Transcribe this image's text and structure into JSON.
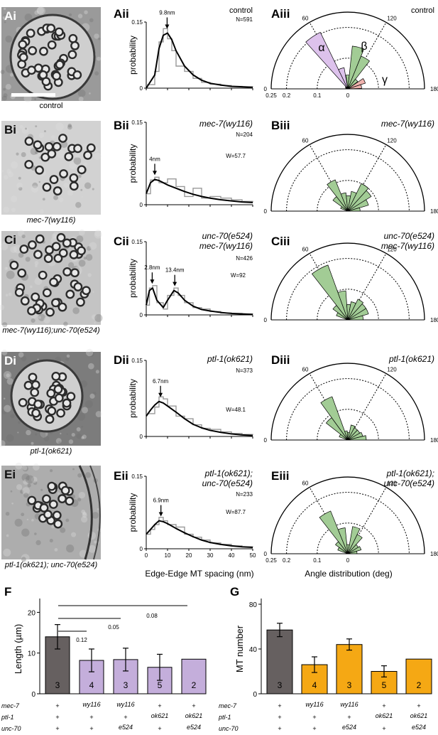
{
  "micrographs": [
    {
      "id": "A",
      "label": "Ai",
      "caption": "control"
    },
    {
      "id": "B",
      "label": "Bi",
      "caption": "mec-7(wy116)"
    },
    {
      "id": "C",
      "label": "Ci",
      "caption": "mec-7(wy116);unc-70(e524)"
    },
    {
      "id": "D",
      "label": "Di",
      "caption": "ptl-1(ok621)"
    },
    {
      "id": "E",
      "label": "Ei",
      "caption": "ptl-1(ok621); unc-70(e524)"
    }
  ],
  "spacing_panels": [
    {
      "label": "Aii",
      "genotype": [
        "control"
      ],
      "N": "N=591",
      "W": "",
      "peaks": [
        "9.8nm"
      ]
    },
    {
      "label": "Bii",
      "genotype": [
        "mec-7(wy116)"
      ],
      "N": "N=204",
      "W": "W=57.7",
      "peaks": [
        "4nm"
      ]
    },
    {
      "label": "Cii",
      "genotype": [
        "unc-70(e524)",
        "mec-7(wy116)"
      ],
      "N": "N=426",
      "W": "W=92",
      "peaks": [
        "2.8nm",
        "13.4nm"
      ]
    },
    {
      "label": "Dii",
      "genotype": [
        "ptl-1(ok621)"
      ],
      "N": "N=373",
      "W": "W=48.1",
      "peaks": [
        "6.7nm"
      ]
    },
    {
      "label": "Eii",
      "genotype": [
        "ptl-1(ok621);",
        "unc-70(e524)"
      ],
      "N": "N=233",
      "W": "W=87.7",
      "peaks": [
        "6.9nm"
      ]
    }
  ],
  "angle_panels": [
    {
      "label": "Aiii",
      "genotype": [
        "control"
      ],
      "greek": [
        "α",
        "β",
        "γ"
      ]
    },
    {
      "label": "Biii",
      "genotype": [
        "mec-7(wy116)"
      ]
    },
    {
      "label": "Ciii",
      "genotype": [
        "unc-70(e524)",
        "mec-7(wy116)"
      ]
    },
    {
      "label": "Diii",
      "genotype": [
        "ptl-1(ok621)"
      ]
    },
    {
      "label": "Eiii",
      "genotype": [
        "ptl-1(ok621);",
        "unc-70(e524)"
      ]
    }
  ],
  "axis_text": {
    "probability": "probability",
    "ytick_top": "0.15",
    "ytick_zero": "0",
    "spacing_xlabel": "Edge-Edge MT spacing (nm)",
    "spacing_xticks": [
      "0",
      "10",
      "20",
      "30",
      "40",
      "50"
    ],
    "angle_xlabel": "Angle distribution (deg)",
    "angle_marks": [
      "0",
      "60",
      "120",
      "180"
    ],
    "radius_ticks": [
      "0.25",
      "0.2",
      "0.1",
      "0"
    ]
  },
  "bar_panels": {
    "F": {
      "label": "F",
      "ylabel": "Length (µm)",
      "yticks": [
        "0",
        "10",
        "20"
      ],
      "pvalues": [
        "0.12",
        "0.05",
        "0.08"
      ]
    },
    "G": {
      "label": "G",
      "ylabel": "MT number",
      "yticks": [
        "0",
        "40",
        "80"
      ]
    }
  },
  "genotype_table": {
    "rows": [
      "mec-7",
      "ptl-1",
      "unc-70"
    ],
    "cols": [
      [
        "+",
        "+",
        "+"
      ],
      [
        "wy116",
        "+",
        "+"
      ],
      [
        "wy116",
        "+",
        "e524"
      ],
      [
        "+",
        "ok621",
        "+"
      ],
      [
        "+",
        "ok621",
        "e524"
      ]
    ]
  },
  "colors": {
    "control": "#666060",
    "mec7": "#c4aedb",
    "orange": "#f5a814",
    "green": "#a2cc95",
    "alpha": "#ddc2ec",
    "gamma": "#f0b3ae"
  },
  "chart_data": [
    {
      "type": "line",
      "title": "Aii",
      "xlabel": "Edge-Edge MT spacing (nm)",
      "ylabel": "probability",
      "xlim": [
        0,
        50
      ],
      "ylim": [
        0,
        0.15
      ],
      "x": [
        0,
        4,
        6,
        8,
        10,
        12,
        14,
        18,
        22,
        26,
        30,
        35,
        40,
        45,
        50
      ],
      "fit": [
        0,
        0.03,
        0.09,
        0.12,
        0.125,
        0.11,
        0.085,
        0.05,
        0.03,
        0.018,
        0.011,
        0.007,
        0.004,
        0.003,
        0.002
      ],
      "hist": [
        0.008,
        0.038,
        0.105,
        0.135,
        0.112,
        0.085,
        0.05,
        0.038,
        0.022,
        0.013,
        0.009,
        0.006,
        0.004,
        0.003,
        0.002
      ],
      "peak_x": [
        9.8
      ]
    },
    {
      "type": "line",
      "title": "Bii",
      "xlim": [
        0,
        50
      ],
      "ylim": [
        0,
        0.15
      ],
      "x": [
        0,
        2,
        4,
        6,
        8,
        10,
        14,
        18,
        22,
        26,
        30,
        35,
        40,
        45,
        50
      ],
      "fit": [
        0.02,
        0.04,
        0.046,
        0.044,
        0.04,
        0.036,
        0.03,
        0.024,
        0.019,
        0.015,
        0.012,
        0.009,
        0.007,
        0.005,
        0.004
      ],
      "hist": [
        0.02,
        0.045,
        0.05,
        0.04,
        0.04,
        0.047,
        0.033,
        0.015,
        0.03,
        0.012,
        0.015,
        0.012,
        0.009,
        0.006,
        0.004
      ],
      "peak_x": [
        4
      ]
    },
    {
      "type": "line",
      "title": "Cii",
      "xlim": [
        0,
        50
      ],
      "ylim": [
        0,
        0.15
      ],
      "x": [
        0,
        1.5,
        3,
        5,
        8,
        10,
        13,
        15,
        18,
        22,
        26,
        30,
        35,
        40,
        45,
        50
      ],
      "fit": [
        0.02,
        0.05,
        0.055,
        0.03,
        0.015,
        0.03,
        0.05,
        0.045,
        0.03,
        0.018,
        0.011,
        0.008,
        0.005,
        0.003,
        0.002,
        0.001
      ],
      "hist": [
        0.02,
        0.055,
        0.06,
        0.025,
        0.012,
        0.04,
        0.055,
        0.04,
        0.025,
        0.015,
        0.012,
        0.007,
        0.004,
        0.003,
        0.002,
        0.001
      ],
      "peak_x": [
        2.8,
        13.4
      ]
    },
    {
      "type": "line",
      "title": "Dii",
      "xlim": [
        0,
        50
      ],
      "ylim": [
        0,
        0.15
      ],
      "x": [
        0,
        2,
        4,
        6,
        8,
        10,
        14,
        18,
        22,
        26,
        30,
        35,
        40,
        45,
        50
      ],
      "fit": [
        0.04,
        0.052,
        0.062,
        0.069,
        0.066,
        0.06,
        0.048,
        0.035,
        0.024,
        0.017,
        0.012,
        0.008,
        0.005,
        0.003,
        0.002
      ],
      "hist": [
        0.045,
        0.045,
        0.058,
        0.078,
        0.074,
        0.06,
        0.04,
        0.035,
        0.023,
        0.016,
        0.014,
        0.009,
        0.006,
        0.004,
        0.003
      ],
      "peak_x": [
        6.7
      ]
    },
    {
      "type": "line",
      "title": "Eii",
      "xlim": [
        0,
        50
      ],
      "ylim": [
        0,
        0.15
      ],
      "x": [
        0,
        2,
        4,
        6,
        8,
        10,
        14,
        18,
        22,
        26,
        30,
        35,
        40,
        45,
        50
      ],
      "fit": [
        0.03,
        0.04,
        0.05,
        0.058,
        0.056,
        0.052,
        0.042,
        0.033,
        0.025,
        0.018,
        0.013,
        0.009,
        0.006,
        0.004,
        0.003
      ],
      "hist": [
        0.03,
        0.04,
        0.05,
        0.065,
        0.058,
        0.05,
        0.045,
        0.03,
        0.024,
        0.018,
        0.012,
        0.009,
        0.006,
        0.004,
        0.003
      ],
      "peak_x": [
        6.9
      ]
    },
    {
      "type": "bar",
      "title": "F",
      "ylabel": "Length (µm)",
      "ylim": [
        0,
        22
      ],
      "categories": [
        "control",
        "mec-7(wy116)",
        "mec-7(wy116);unc-70(e524)",
        "ptl-1(ok621)",
        "ptl-1(ok621);unc-70(e524)"
      ],
      "values": [
        14,
        8.2,
        8.4,
        6.5,
        8.5
      ],
      "errors": [
        3.0,
        2.8,
        2.8,
        3.2,
        0
      ],
      "n": [
        "3",
        "4",
        "3",
        "5",
        "2"
      ]
    },
    {
      "type": "bar",
      "title": "G",
      "ylabel": "MT number",
      "ylim": [
        0,
        80
      ],
      "categories": [
        "control",
        "mec-7(wy116)",
        "mec-7(wy116);unc-70(e524)",
        "ptl-1(ok621)",
        "ptl-1(ok621);unc-70(e524)"
      ],
      "values": [
        57,
        26,
        44,
        20,
        31
      ],
      "errors": [
        6,
        7,
        5,
        5,
        0
      ],
      "n": [
        "3",
        "4",
        "3",
        "5",
        "2"
      ]
    }
  ],
  "rose_data": [
    {
      "panel": "Aiii",
      "max": 0.25,
      "bins": [
        {
          "a0": 0,
          "a1": 18,
          "r": 0.005,
          "g": "n"
        },
        {
          "a0": 18,
          "a1": 36,
          "r": 0.008,
          "g": "n"
        },
        {
          "a0": 36,
          "a1": 54,
          "r": 0.01,
          "g": "n"
        },
        {
          "a0": 48,
          "a1": 64,
          "r": 0.205,
          "g": "a"
        },
        {
          "a0": 64,
          "a1": 80,
          "r": 0.07,
          "g": "a"
        },
        {
          "a0": 82,
          "a1": 96,
          "r": 0.045,
          "g": "b"
        },
        {
          "a0": 96,
          "a1": 112,
          "r": 0.14,
          "g": "b"
        },
        {
          "a0": 112,
          "a1": 128,
          "r": 0.115,
          "g": "b"
        },
        {
          "a0": 128,
          "a1": 144,
          "r": 0.04,
          "g": "b"
        },
        {
          "a0": 146,
          "a1": 162,
          "r": 0.06,
          "g": "c"
        },
        {
          "a0": 162,
          "a1": 178,
          "r": 0.045,
          "g": "c"
        }
      ]
    },
    {
      "panel": "Biii",
      "max": 0.25,
      "bins": [
        {
          "a0": 20,
          "a1": 36,
          "r": 0.025,
          "g": "b"
        },
        {
          "a0": 36,
          "a1": 52,
          "r": 0.06,
          "g": "b"
        },
        {
          "a0": 52,
          "a1": 68,
          "r": 0.11,
          "g": "b"
        },
        {
          "a0": 68,
          "a1": 84,
          "r": 0.06,
          "g": "b"
        },
        {
          "a0": 84,
          "a1": 100,
          "r": 0.05,
          "g": "b"
        },
        {
          "a0": 100,
          "a1": 116,
          "r": 0.065,
          "g": "b"
        },
        {
          "a0": 116,
          "a1": 132,
          "r": 0.1,
          "g": "b"
        },
        {
          "a0": 132,
          "a1": 148,
          "r": 0.09,
          "g": "b"
        },
        {
          "a0": 148,
          "a1": 164,
          "r": 0.07,
          "g": "b"
        },
        {
          "a0": 164,
          "a1": 180,
          "r": 0.04,
          "g": "b"
        }
      ]
    },
    {
      "panel": "Ciii",
      "max": 0.25,
      "bins": [
        {
          "a0": 20,
          "a1": 36,
          "r": 0.04,
          "g": "b"
        },
        {
          "a0": 36,
          "a1": 52,
          "r": 0.06,
          "g": "b"
        },
        {
          "a0": 52,
          "a1": 70,
          "r": 0.19,
          "g": "b"
        },
        {
          "a0": 70,
          "a1": 86,
          "r": 0.095,
          "g": "b"
        },
        {
          "a0": 86,
          "a1": 100,
          "r": 0.05,
          "g": "b"
        },
        {
          "a0": 100,
          "a1": 116,
          "r": 0.06,
          "g": "b"
        },
        {
          "a0": 116,
          "a1": 132,
          "r": 0.075,
          "g": "b"
        },
        {
          "a0": 132,
          "a1": 148,
          "r": 0.07,
          "g": "b"
        },
        {
          "a0": 148,
          "a1": 164,
          "r": 0.07,
          "g": "b"
        },
        {
          "a0": 164,
          "a1": 180,
          "r": 0.05,
          "g": "b"
        }
      ]
    },
    {
      "panel": "Diii",
      "max": 0.25,
      "bins": [
        {
          "a0": 20,
          "a1": 38,
          "r": 0.03,
          "g": "b"
        },
        {
          "a0": 38,
          "a1": 54,
          "r": 0.09,
          "g": "b"
        },
        {
          "a0": 54,
          "a1": 70,
          "r": 0.15,
          "g": "b"
        },
        {
          "a0": 70,
          "a1": 86,
          "r": 0.03,
          "g": "b"
        },
        {
          "a0": 86,
          "a1": 102,
          "r": 0.025,
          "g": "b"
        },
        {
          "a0": 102,
          "a1": 118,
          "r": 0.05,
          "g": "b"
        },
        {
          "a0": 118,
          "a1": 134,
          "r": 0.045,
          "g": "b"
        },
        {
          "a0": 134,
          "a1": 150,
          "r": 0.045,
          "g": "b"
        },
        {
          "a0": 150,
          "a1": 166,
          "r": 0.05,
          "g": "b"
        },
        {
          "a0": 166,
          "a1": 180,
          "r": 0.06,
          "g": "b"
        }
      ]
    },
    {
      "panel": "Eiii",
      "max": 0.25,
      "bins": [
        {
          "a0": 20,
          "a1": 36,
          "r": 0.035,
          "g": "b"
        },
        {
          "a0": 36,
          "a1": 52,
          "r": 0.05,
          "g": "b"
        },
        {
          "a0": 52,
          "a1": 68,
          "r": 0.15,
          "g": "b"
        },
        {
          "a0": 68,
          "a1": 84,
          "r": 0.085,
          "g": "b"
        },
        {
          "a0": 84,
          "a1": 100,
          "r": 0.03,
          "g": "b"
        },
        {
          "a0": 100,
          "a1": 116,
          "r": 0.09,
          "g": "b"
        },
        {
          "a0": 116,
          "a1": 132,
          "r": 0.07,
          "g": "b"
        },
        {
          "a0": 132,
          "a1": 148,
          "r": 0.04,
          "g": "b"
        },
        {
          "a0": 148,
          "a1": 164,
          "r": 0.045,
          "g": "b"
        },
        {
          "a0": 164,
          "a1": 180,
          "r": 0.03,
          "g": "b"
        }
      ]
    }
  ]
}
